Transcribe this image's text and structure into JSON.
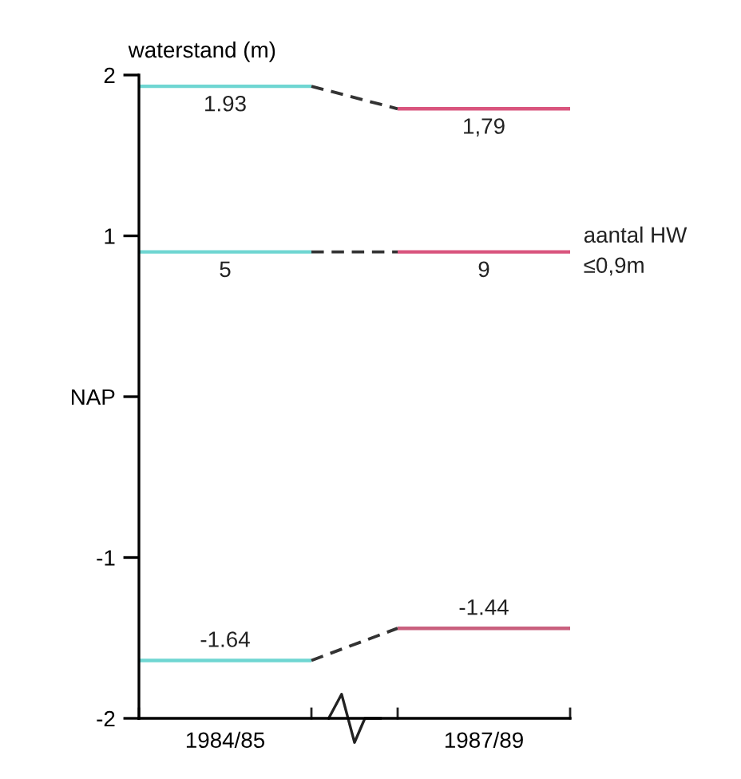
{
  "chart_data": {
    "type": "line",
    "ylabel": "waterstand (m)",
    "categories": [
      null,
      "1984/85",
      null,
      null,
      "1987/89",
      null
    ],
    "series": [
      {
        "color": "#6fd6d2",
        "values": [
          1.93,
          1.93,
          1.93,
          null,
          null,
          null
        ],
        "value_labels": [
          null,
          "1.93",
          null,
          null,
          null,
          null
        ]
      },
      {
        "color": "#333333",
        "line_style": "dashed",
        "values": [
          null,
          null,
          1.93,
          1.79,
          null,
          null
        ]
      },
      {
        "color": "#d9557e",
        "values": [
          null,
          null,
          null,
          1.79,
          1.79,
          1.79
        ],
        "value_labels": [
          null,
          null,
          null,
          null,
          "1,79",
          null
        ]
      },
      {
        "color": "#6fd6d2",
        "values": [
          0.9,
          0.9,
          0.9,
          null,
          null,
          null
        ]
      },
      {
        "color": "#333333",
        "line_style": "dashed",
        "values": [
          null,
          null,
          0.9,
          0.9,
          null,
          null
        ]
      },
      {
        "name": "aantal HW\n≤0,9m",
        "color": "#d9557e",
        "values": [
          null,
          null,
          null,
          0.9,
          0.9,
          0.9
        ]
      },
      {
        "color": "#6fd6d2",
        "values": [
          -1.64,
          -1.64,
          -1.64,
          null,
          null,
          null
        ],
        "value_labels": [
          null,
          "-1.64",
          null,
          null,
          null,
          null
        ]
      },
      {
        "color": "#333333",
        "line_style": "dashed",
        "values": [
          null,
          null,
          -1.64,
          -1.44,
          null,
          null
        ]
      },
      {
        "color": "#c9607e",
        "values": [
          null,
          null,
          null,
          -1.44,
          -1.44,
          -1.44
        ],
        "value_labels": [
          null,
          null,
          null,
          null,
          "-1.44",
          null
        ]
      }
    ],
    "annotations": [
      {
        "text": "5",
        "x": "1984/85",
        "y": 0.9
      },
      {
        "text": "9",
        "x": "1987/89",
        "y": 0.9
      }
    ],
    "ylim": [
      -2,
      2
    ],
    "yticks": [
      {
        "value": 2,
        "label": "2"
      },
      {
        "value": 1,
        "label": "1"
      },
      {
        "value": 0,
        "label": "NAP"
      },
      {
        "value": -1,
        "label": "-1"
      },
      {
        "value": -2,
        "label": "-2"
      }
    ],
    "grid": false,
    "legend": false
  }
}
